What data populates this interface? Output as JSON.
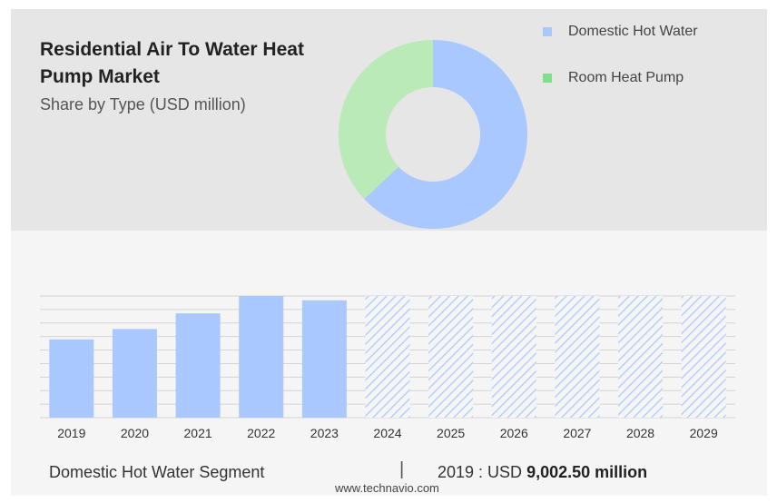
{
  "header": {
    "title": "Residential Air To Water Heat Pump Market",
    "subtitle": "Share by Type (USD million)"
  },
  "colors": {
    "domestic": "#a9c8ff",
    "room": "#b9eab7",
    "forecast_hatch": "#a9c8ff"
  },
  "legend": [
    {
      "label": "Domestic Hot Water",
      "color": "#a9c8ff"
    },
    {
      "label": "Room Heat Pump",
      "color": "#7ee08a"
    }
  ],
  "footer": {
    "segment": "Domestic Hot Water Segment",
    "separator": "|",
    "year_label": "2019 : USD",
    "value": "9,002.50 million"
  },
  "source": "www.technavio.com",
  "chart_data": [
    {
      "type": "pie",
      "style": "donut",
      "categories": [
        "Domestic Hot Water",
        "Room Heat Pump"
      ],
      "values": [
        63,
        37
      ]
    },
    {
      "type": "bar",
      "categories": [
        "2019",
        "2020",
        "2021",
        "2022",
        "2023",
        "2024",
        "2025",
        "2026",
        "2027",
        "2028",
        "2029"
      ],
      "values": [
        9002.5,
        10200,
        12000,
        14000,
        13500,
        null,
        null,
        null,
        null,
        null,
        null
      ],
      "forecast": [
        false,
        false,
        false,
        false,
        false,
        true,
        true,
        true,
        true,
        true,
        true
      ],
      "ylim": [
        0,
        14000
      ],
      "grid": true,
      "xlabel": "",
      "ylabel": ""
    }
  ]
}
